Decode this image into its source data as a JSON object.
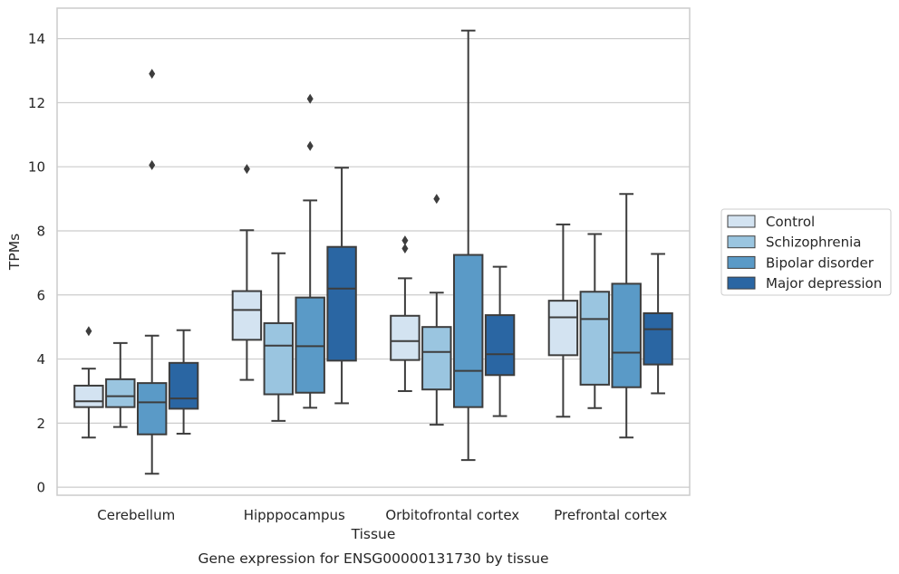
{
  "chart_data": {
    "type": "boxplot",
    "title": "",
    "caption": "Gene expression for ENSG00000131730 by tissue",
    "xlabel": "Tissue",
    "ylabel": "TPMs",
    "ylim": [
      -0.25,
      14.95
    ],
    "yticks": [
      0,
      2,
      4,
      6,
      8,
      10,
      12,
      14
    ],
    "grid": "horizontal",
    "legend_position": "right",
    "categories": [
      "Cerebellum",
      "Hipppocampus",
      "Orbitofrontal cortex",
      "Prefrontal cortex"
    ],
    "series": [
      {
        "name": "Control",
        "color": "#d3e3f1",
        "boxes": [
          {
            "whislo": 1.55,
            "q1": 2.5,
            "med": 2.68,
            "q3": 3.17,
            "whishi": 3.7,
            "fliers": [
              4.87
            ]
          },
          {
            "whislo": 3.35,
            "q1": 4.6,
            "med": 5.53,
            "q3": 6.12,
            "whishi": 8.02,
            "fliers": [
              9.93
            ]
          },
          {
            "whislo": 3.0,
            "q1": 3.97,
            "med": 4.56,
            "q3": 5.35,
            "whishi": 6.52,
            "fliers": [
              7.45,
              7.7
            ]
          },
          {
            "whislo": 2.2,
            "q1": 4.12,
            "med": 5.3,
            "q3": 5.82,
            "whishi": 8.2,
            "fliers": []
          }
        ]
      },
      {
        "name": "Schizophrenia",
        "color": "#9ac5e0",
        "boxes": [
          {
            "whislo": 1.88,
            "q1": 2.5,
            "med": 2.84,
            "q3": 3.37,
            "whishi": 4.5,
            "fliers": []
          },
          {
            "whislo": 2.07,
            "q1": 2.9,
            "med": 4.42,
            "q3": 5.12,
            "whishi": 7.3,
            "fliers": []
          },
          {
            "whislo": 1.95,
            "q1": 3.05,
            "med": 4.22,
            "q3": 5.0,
            "whishi": 6.07,
            "fliers": [
              9.0
            ]
          },
          {
            "whislo": 2.47,
            "q1": 3.2,
            "med": 5.25,
            "q3": 6.1,
            "whishi": 7.9,
            "fliers": []
          }
        ]
      },
      {
        "name": "Bipolar disorder",
        "color": "#5a9ac7",
        "boxes": [
          {
            "whislo": 0.42,
            "q1": 1.65,
            "med": 2.65,
            "q3": 3.25,
            "whishi": 4.73,
            "fliers": [
              10.05,
              12.9
            ]
          },
          {
            "whislo": 2.48,
            "q1": 2.95,
            "med": 4.4,
            "q3": 5.92,
            "whishi": 8.95,
            "fliers": [
              10.65,
              12.12
            ]
          },
          {
            "whislo": 0.85,
            "q1": 2.5,
            "med": 3.63,
            "q3": 7.25,
            "whishi": 14.25,
            "fliers": []
          },
          {
            "whislo": 1.55,
            "q1": 3.12,
            "med": 4.2,
            "q3": 6.35,
            "whishi": 9.15,
            "fliers": []
          }
        ]
      },
      {
        "name": "Major depression",
        "color": "#2a66a3",
        "boxes": [
          {
            "whislo": 1.67,
            "q1": 2.45,
            "med": 2.77,
            "q3": 3.88,
            "whishi": 4.9,
            "fliers": []
          },
          {
            "whislo": 2.62,
            "q1": 3.95,
            "med": 6.2,
            "q3": 7.5,
            "whishi": 9.97,
            "fliers": []
          },
          {
            "whislo": 2.22,
            "q1": 3.5,
            "med": 4.15,
            "q3": 5.37,
            "whishi": 6.88,
            "fliers": []
          },
          {
            "whislo": 2.93,
            "q1": 3.83,
            "med": 4.93,
            "q3": 5.43,
            "whishi": 7.28,
            "fliers": []
          }
        ]
      }
    ]
  }
}
